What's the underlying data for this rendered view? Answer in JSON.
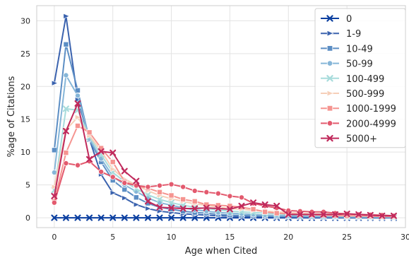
{
  "chart_data": {
    "type": "line",
    "xlabel": "Age when Cited",
    "ylabel": "%age of Citations",
    "xlim": [
      -1.5,
      30
    ],
    "ylim": [
      -1.5,
      32.3
    ],
    "xticks": [
      0,
      5,
      10,
      15,
      20,
      25,
      30
    ],
    "yticks": [
      0,
      5,
      10,
      15,
      20,
      25,
      30
    ],
    "grid": true,
    "legend_position": "top-right",
    "series": [
      {
        "name": "0",
        "color": "#0b3fa0",
        "marker": "x",
        "x": [
          0,
          1,
          2,
          3,
          4,
          5,
          6,
          7,
          8,
          9,
          10,
          11,
          12,
          13,
          14,
          15,
          16,
          17,
          18,
          19,
          20,
          21,
          22,
          23,
          24,
          25,
          26,
          27,
          28,
          29
        ],
        "y": [
          0,
          0,
          0,
          0,
          0,
          0,
          0,
          0,
          0,
          0,
          0,
          0,
          0,
          0,
          0,
          0,
          0,
          0,
          0,
          0,
          0,
          0,
          0,
          0,
          0,
          0,
          0,
          0,
          0,
          0
        ]
      },
      {
        "name": "1-9",
        "color": "#3a62ae",
        "marker": "triangle-right",
        "x": [
          0,
          1,
          2,
          3,
          4,
          5,
          6,
          7,
          8,
          9,
          10,
          11,
          12,
          13,
          14,
          15,
          16,
          17,
          18,
          19,
          20,
          21,
          22,
          23,
          24,
          25,
          26,
          27,
          28,
          29
        ],
        "y": [
          20.5,
          30.7,
          18,
          12,
          6.6,
          3.8,
          3,
          2,
          1.4,
          1,
          0.8,
          0.6,
          0.5,
          0.4,
          0.3,
          0.25,
          0.2,
          0.2,
          0.15,
          0.12,
          0.1,
          0.1,
          0.08,
          0.07,
          0.06,
          0.05,
          0.05,
          0.04,
          0.04,
          0.03
        ]
      },
      {
        "name": "10-49",
        "color": "#5c8ec4",
        "marker": "square",
        "x": [
          0,
          1,
          2,
          3,
          4,
          5,
          6,
          7,
          8,
          9,
          10,
          11,
          12,
          13,
          14,
          15,
          16,
          17,
          18,
          19,
          20,
          21,
          22,
          23,
          24,
          25,
          26,
          27,
          28,
          29
        ],
        "y": [
          10.3,
          26.4,
          19.4,
          11.9,
          8.5,
          5.7,
          4.3,
          3.1,
          2.2,
          1.6,
          1.3,
          1,
          0.8,
          0.7,
          0.5,
          0.4,
          0.35,
          0.3,
          0.25,
          0.2,
          0.2,
          0.15,
          0.15,
          0.1,
          0.1,
          0.1,
          0.08,
          0.07,
          0.06,
          0.05
        ]
      },
      {
        "name": "50-99",
        "color": "#86b6d8",
        "marker": "circle",
        "x": [
          0,
          1,
          2,
          3,
          4,
          5,
          6,
          7,
          8,
          9,
          10,
          11,
          12,
          13,
          14,
          15,
          16,
          17,
          18,
          19,
          20,
          21,
          22,
          23,
          24,
          25,
          26,
          27,
          28,
          29
        ],
        "y": [
          6.9,
          21.7,
          18.6,
          12,
          9,
          6.3,
          5,
          4,
          3,
          2.3,
          1.9,
          1.5,
          1.2,
          1,
          0.8,
          0.7,
          0.6,
          0.5,
          0.4,
          0.35,
          0.3,
          0.25,
          0.2,
          0.2,
          0.15,
          0.15,
          0.12,
          0.1,
          0.1,
          0.08
        ]
      },
      {
        "name": "100-499",
        "color": "#a8dcdc",
        "marker": "x",
        "x": [
          0,
          1,
          2,
          3,
          4,
          5,
          6,
          7,
          8,
          9,
          10,
          11,
          12,
          13,
          14,
          15,
          16,
          17,
          18,
          19,
          20,
          21,
          22,
          23,
          24,
          25,
          26,
          27,
          28,
          29
        ],
        "y": [
          4.2,
          16.6,
          16.4,
          12.3,
          9.6,
          6.9,
          5.5,
          4.4,
          3.5,
          2.8,
          2.3,
          1.9,
          1.6,
          1.4,
          1.2,
          1,
          0.9,
          0.8,
          0.7,
          0.6,
          0.5,
          0.45,
          0.4,
          0.35,
          0.3,
          0.25,
          0.25,
          0.2,
          0.2,
          0.15
        ]
      },
      {
        "name": "500-999",
        "color": "#f6cfb8",
        "marker": "triangle-right",
        "x": [
          0,
          1,
          2,
          3,
          4,
          5,
          6,
          7,
          8,
          9,
          10,
          11,
          12,
          13,
          14,
          15,
          16,
          17,
          18,
          19,
          20,
          21,
          22,
          23,
          24,
          25,
          26,
          27,
          28,
          29
        ],
        "y": [
          4.7,
          13.4,
          15.3,
          12.5,
          10.2,
          7.4,
          5.9,
          5,
          4.1,
          3.4,
          2.9,
          2.5,
          2.1,
          1.9,
          1.6,
          1.4,
          1.3,
          1.1,
          1,
          0.9,
          0.8,
          0.7,
          0.6,
          0.6,
          0.5,
          0.45,
          0.4,
          0.35,
          0.3,
          0.3
        ]
      },
      {
        "name": "1000-1999",
        "color": "#f59490",
        "marker": "square",
        "x": [
          0,
          1,
          2,
          3,
          4,
          5,
          6,
          7,
          8,
          9,
          10,
          11,
          12,
          13,
          14,
          15,
          16,
          17,
          18,
          19,
          20,
          21,
          22,
          23,
          24,
          25,
          26,
          27,
          28,
          29
        ],
        "y": [
          2.5,
          9.9,
          14,
          13,
          10.6,
          8.5,
          5.5,
          4.9,
          4.5,
          3.9,
          3.4,
          2.8,
          2.5,
          2,
          1.9,
          1.8,
          1.6,
          1.3,
          0.9,
          0.7,
          0.6,
          0.5,
          0.45,
          0.4,
          0.35,
          0.3,
          0.3,
          0.25,
          0.2,
          0.2
        ]
      },
      {
        "name": "2000-4999",
        "color": "#e35a6e",
        "marker": "circle",
        "x": [
          0,
          1,
          2,
          3,
          4,
          5,
          6,
          7,
          8,
          9,
          10,
          11,
          12,
          13,
          14,
          15,
          16,
          17,
          18,
          19,
          20,
          21,
          22,
          23,
          24,
          25,
          26,
          27,
          28,
          29
        ],
        "y": [
          2.3,
          8.3,
          8,
          8.6,
          7,
          6.2,
          5.3,
          4.9,
          4.7,
          4.9,
          5.1,
          4.7,
          4.1,
          3.9,
          3.7,
          3.3,
          3.1,
          2.2,
          1.8,
          1.5,
          1.1,
          1,
          0.9,
          0.9,
          0.7,
          0.6,
          0.5,
          0.45,
          0.4,
          0.3
        ]
      },
      {
        "name": "5000+",
        "color": "#c02a5c",
        "marker": "x",
        "x": [
          0,
          1,
          2,
          3,
          4,
          5,
          6,
          7,
          8,
          9,
          10,
          11,
          12,
          13,
          14,
          15,
          16,
          17,
          18,
          19,
          20,
          21,
          22,
          23,
          24,
          25,
          26,
          27,
          28,
          29
        ],
        "y": [
          3.3,
          13.2,
          17.4,
          8.9,
          10.1,
          9.9,
          7.1,
          5.6,
          2.5,
          1.6,
          1.5,
          1.4,
          1.4,
          1.5,
          1.4,
          1.3,
          1.8,
          2.3,
          2,
          1.8,
          0.5,
          0.5,
          0.5,
          0.5,
          0.5,
          0.6,
          0.5,
          0.4,
          0.3,
          0.3
        ]
      }
    ]
  }
}
